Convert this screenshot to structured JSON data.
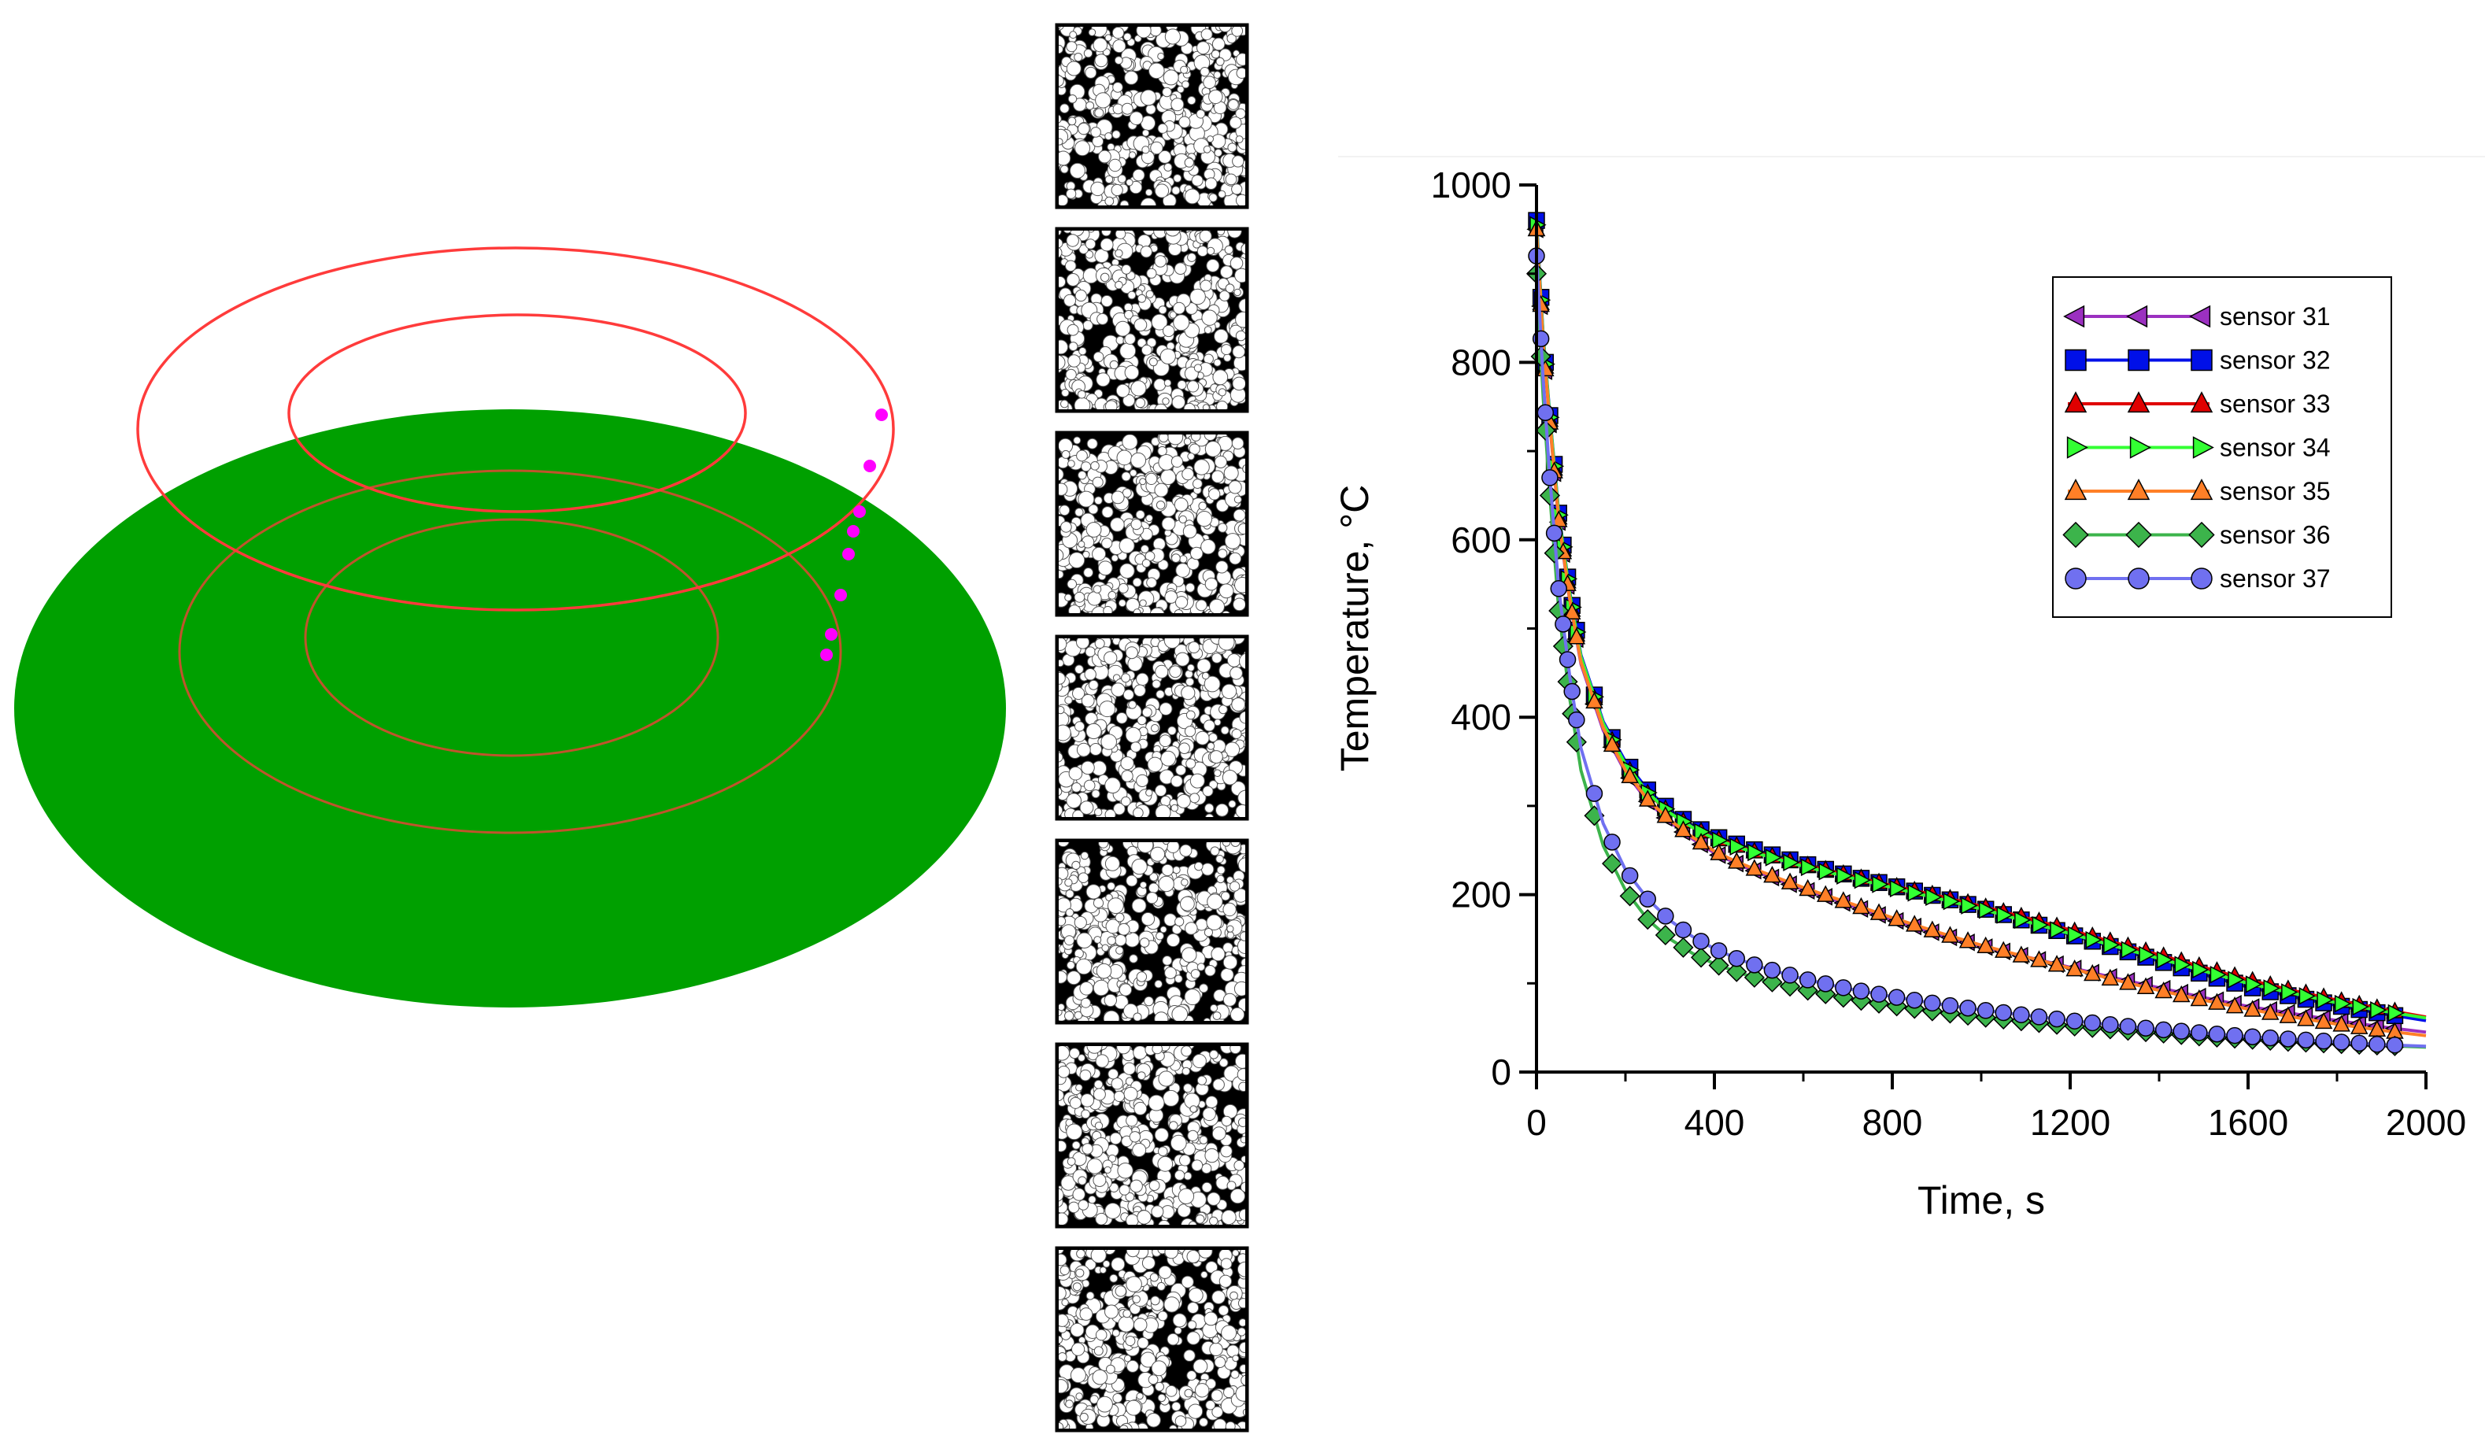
{
  "scene": {
    "disc_color": "#00a000",
    "ring_color": "#ff3b3b",
    "sensor_dot_color": "#ff00ff",
    "sensor_dot_count": 8
  },
  "micrographs": {
    "count": 7,
    "particle_color": "#ffffff",
    "background_color": "#000000"
  },
  "chart_data": {
    "type": "line",
    "xlabel": "Time, s",
    "ylabel": "Temperature, °C",
    "xlim": [
      0,
      2000
    ],
    "ylim": [
      0,
      1000
    ],
    "xticks": [
      0,
      400,
      800,
      1200,
      1600,
      2000
    ],
    "yticks": [
      0,
      200,
      400,
      600,
      800,
      1000
    ],
    "grid": false,
    "legend_position": "top-right",
    "x": [
      0,
      15,
      30,
      50,
      75,
      100,
      150,
      200,
      250,
      300,
      350,
      400,
      450,
      500,
      600,
      700,
      800,
      900,
      1000,
      1100,
      1200,
      1300,
      1400,
      1500,
      1600,
      1700,
      1800,
      1900,
      2000
    ],
    "series": [
      {
        "name": "sensor 31",
        "marker": "triangle-left",
        "color": "#9b30c0",
        "values": [
          950,
          820,
          730,
          620,
          530,
          460,
          385,
          338,
          305,
          282,
          263,
          247,
          235,
          225,
          206,
          189,
          172,
          156,
          142,
          130,
          118,
          106,
          95,
          84,
          74,
          66,
          58,
          51,
          45
        ]
      },
      {
        "name": "sensor 32",
        "marker": "square",
        "color": "#0010e8",
        "values": [
          960,
          830,
          740,
          630,
          540,
          470,
          395,
          350,
          318,
          295,
          278,
          266,
          257,
          249,
          235,
          222,
          210,
          198,
          185,
          170,
          155,
          140,
          125,
          110,
          96,
          85,
          75,
          66,
          58
        ]
      },
      {
        "name": "sensor 33",
        "marker": "triangle-up",
        "color": "#e00000",
        "values": [
          950,
          825,
          735,
          625,
          535,
          465,
          392,
          346,
          314,
          292,
          276,
          264,
          255,
          247,
          234,
          222,
          210,
          199,
          187,
          174,
          160,
          146,
          132,
          118,
          104,
          92,
          81,
          71,
          62
        ]
      },
      {
        "name": "sensor 34",
        "marker": "triangle-right",
        "color": "#33ff33",
        "values": [
          955,
          828,
          738,
          628,
          538,
          468,
          393,
          347,
          315,
          292,
          276,
          263,
          254,
          246,
          232,
          220,
          208,
          196,
          184,
          170,
          156,
          142,
          128,
          114,
          100,
          89,
          78,
          69,
          61
        ]
      },
      {
        "name": "sensor 35",
        "marker": "triangle-up",
        "color": "#ff7f27",
        "values": [
          950,
          822,
          732,
          622,
          532,
          462,
          388,
          340,
          307,
          284,
          265,
          249,
          237,
          227,
          208,
          191,
          174,
          158,
          143,
          130,
          117,
          104,
          92,
          81,
          71,
          62,
          54,
          47,
          41
        ]
      },
      {
        "name": "sensor 36",
        "marker": "diamond",
        "color": "#3cb44b",
        "values": [
          900,
          760,
          650,
          520,
          420,
          340,
          255,
          205,
          172,
          150,
          134,
          122,
          113,
          105,
          93,
          83,
          75,
          68,
          62,
          57,
          52,
          48,
          44,
          40,
          37,
          34,
          32,
          30,
          28
        ]
      },
      {
        "name": "sensor 37",
        "marker": "circle",
        "color": "#7070f0",
        "values": [
          920,
          780,
          670,
          545,
          445,
          365,
          280,
          228,
          195,
          171,
          153,
          139,
          128,
          119,
          105,
          94,
          85,
          77,
          70,
          64,
          58,
          53,
          48,
          44,
          40,
          37,
          34,
          31,
          29
        ]
      }
    ]
  }
}
